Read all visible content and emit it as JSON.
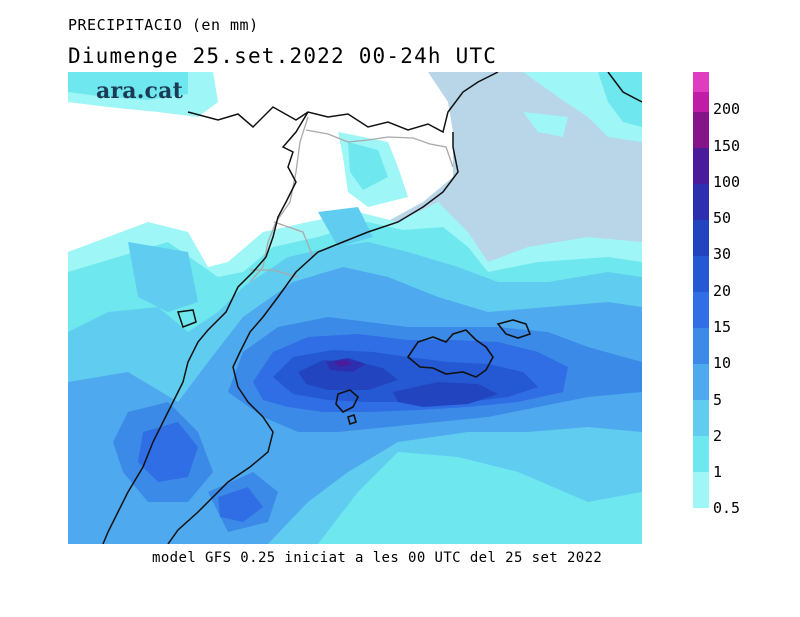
{
  "header": {
    "variable": "PRECIPITACIO (en mm)",
    "period": "Diumenge  25.set.2022 00-24h UTC"
  },
  "branding": {
    "logo_text": "ara.cat"
  },
  "footer": {
    "model_info": "model GFS 0.25 iniciat a les 00 UTC del 25 set 2022"
  },
  "legend": {
    "labels": [
      "0.5",
      "1",
      "2",
      "5",
      "10",
      "15",
      "20",
      "30",
      "50",
      "100",
      "150",
      "200"
    ],
    "colors": [
      "#9ef6f7",
      "#6ee8ee",
      "#60cdf0",
      "#4ea9ee",
      "#3c8ae8",
      "#2f6ee4",
      "#2559d4",
      "#2245bf",
      "#2e2fae",
      "#4a1c9c",
      "#85138a",
      "#bf1ca8",
      "#e03cc2"
    ]
  },
  "palette": {
    "land": "#ffffff",
    "sea": "#b9d6e8",
    "coast": "#111111",
    "border": "#a9a9a9"
  }
}
